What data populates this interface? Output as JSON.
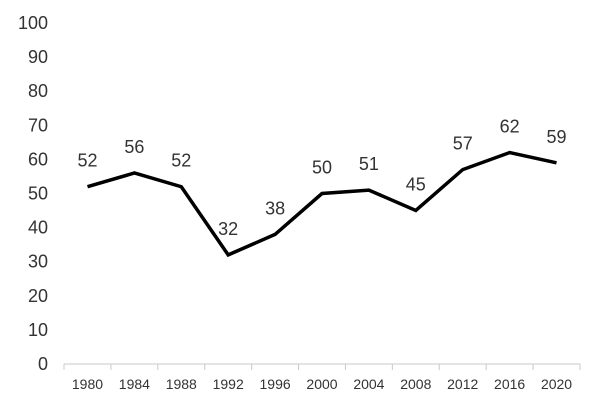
{
  "chart_data": {
    "type": "line",
    "title": "",
    "xlabel": "",
    "ylabel": "",
    "ylim": [
      0,
      100
    ],
    "y_ticks": [
      0,
      10,
      20,
      30,
      40,
      50,
      60,
      70,
      80,
      90,
      100
    ],
    "grid": false,
    "legend": "none",
    "line_color": "#000000",
    "categories": [
      "1980",
      "1984",
      "1988",
      "1992",
      "1996",
      "2000",
      "2004",
      "2008",
      "2012",
      "2016",
      "2020"
    ],
    "values": [
      52,
      56,
      52,
      32,
      38,
      50,
      51,
      45,
      57,
      62,
      59
    ]
  }
}
